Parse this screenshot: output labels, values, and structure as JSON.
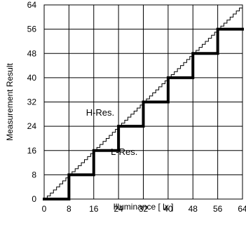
{
  "chart_data": {
    "type": "line",
    "xlabel": "Illuminance [ lx ]",
    "ylabel": "Measurement Result",
    "xlim": [
      0,
      64
    ],
    "ylim": [
      0,
      64
    ],
    "x_ticks": [
      0,
      8,
      16,
      24,
      32,
      40,
      48,
      56,
      64
    ],
    "y_ticks": [
      0,
      8,
      16,
      24,
      32,
      40,
      48,
      56,
      64
    ],
    "grid": true,
    "annotations": [
      {
        "text": "H-Res.",
        "x": 13.5,
        "y": 27.5
      },
      {
        "text": "L-Res.",
        "x": 21.5,
        "y": 14.5
      }
    ],
    "series": [
      {
        "name": "H-Res.",
        "color": "#000000",
        "step_size": 1,
        "points": [
          [
            0,
            0
          ],
          [
            1,
            0
          ],
          [
            1,
            1
          ],
          [
            2,
            1
          ],
          [
            2,
            2
          ],
          [
            3,
            2
          ],
          [
            3,
            3
          ],
          [
            4,
            3
          ],
          [
            4,
            4
          ],
          [
            5,
            4
          ],
          [
            5,
            5
          ],
          [
            6,
            5
          ],
          [
            6,
            6
          ],
          [
            7,
            6
          ],
          [
            7,
            7
          ],
          [
            8,
            7
          ],
          [
            8,
            8
          ],
          [
            9,
            8
          ],
          [
            9,
            9
          ],
          [
            10,
            9
          ],
          [
            10,
            10
          ],
          [
            11,
            10
          ],
          [
            11,
            11
          ],
          [
            12,
            11
          ],
          [
            12,
            12
          ],
          [
            13,
            12
          ],
          [
            13,
            13
          ],
          [
            14,
            13
          ],
          [
            14,
            14
          ],
          [
            15,
            14
          ],
          [
            15,
            15
          ],
          [
            16,
            15
          ],
          [
            16,
            16
          ],
          [
            17,
            16
          ],
          [
            17,
            17
          ],
          [
            18,
            17
          ],
          [
            18,
            18
          ],
          [
            19,
            18
          ],
          [
            19,
            19
          ],
          [
            20,
            19
          ],
          [
            20,
            20
          ],
          [
            21,
            20
          ],
          [
            21,
            21
          ],
          [
            22,
            21
          ],
          [
            22,
            22
          ],
          [
            23,
            22
          ],
          [
            23,
            23
          ],
          [
            24,
            23
          ],
          [
            24,
            24
          ],
          [
            25,
            24
          ],
          [
            25,
            25
          ],
          [
            26,
            25
          ],
          [
            26,
            26
          ],
          [
            27,
            26
          ],
          [
            27,
            27
          ],
          [
            28,
            27
          ],
          [
            28,
            28
          ],
          [
            29,
            28
          ],
          [
            29,
            29
          ],
          [
            30,
            29
          ],
          [
            30,
            30
          ],
          [
            31,
            30
          ],
          [
            31,
            31
          ],
          [
            32,
            31
          ],
          [
            32,
            32
          ],
          [
            33,
            32
          ],
          [
            33,
            33
          ],
          [
            34,
            33
          ],
          [
            34,
            34
          ],
          [
            35,
            34
          ],
          [
            35,
            35
          ],
          [
            36,
            35
          ],
          [
            36,
            36
          ],
          [
            37,
            36
          ],
          [
            37,
            37
          ],
          [
            38,
            37
          ],
          [
            38,
            38
          ],
          [
            39,
            38
          ],
          [
            39,
            39
          ],
          [
            40,
            39
          ],
          [
            40,
            40
          ],
          [
            41,
            40
          ],
          [
            41,
            41
          ],
          [
            42,
            41
          ],
          [
            42,
            42
          ],
          [
            43,
            42
          ],
          [
            43,
            43
          ],
          [
            44,
            43
          ],
          [
            44,
            44
          ],
          [
            45,
            44
          ],
          [
            45,
            45
          ],
          [
            46,
            45
          ],
          [
            46,
            46
          ],
          [
            47,
            46
          ],
          [
            47,
            47
          ],
          [
            48,
            47
          ],
          [
            48,
            48
          ],
          [
            49,
            48
          ],
          [
            49,
            49
          ],
          [
            50,
            49
          ],
          [
            50,
            50
          ],
          [
            51,
            50
          ],
          [
            51,
            51
          ],
          [
            52,
            51
          ],
          [
            52,
            52
          ],
          [
            53,
            52
          ],
          [
            53,
            53
          ],
          [
            54,
            53
          ],
          [
            54,
            54
          ],
          [
            55,
            54
          ],
          [
            55,
            55
          ],
          [
            56,
            55
          ],
          [
            56,
            56
          ],
          [
            57,
            56
          ],
          [
            57,
            57
          ],
          [
            58,
            57
          ],
          [
            58,
            58
          ],
          [
            59,
            58
          ],
          [
            59,
            59
          ],
          [
            60,
            59
          ],
          [
            60,
            60
          ],
          [
            61,
            60
          ],
          [
            61,
            61
          ],
          [
            62,
            61
          ],
          [
            62,
            62
          ],
          [
            63,
            62
          ],
          [
            63,
            63
          ],
          [
            64,
            63
          ]
        ]
      },
      {
        "name": "L-Res.",
        "color": "#000000",
        "step_size": 8,
        "points": [
          [
            0,
            0
          ],
          [
            8,
            0
          ],
          [
            8,
            8
          ],
          [
            16,
            8
          ],
          [
            16,
            16
          ],
          [
            24,
            16
          ],
          [
            24,
            24
          ],
          [
            32,
            24
          ],
          [
            32,
            32
          ],
          [
            40,
            32
          ],
          [
            40,
            40
          ],
          [
            48,
            40
          ],
          [
            48,
            48
          ],
          [
            56,
            48
          ],
          [
            56,
            56
          ],
          [
            64,
            56
          ]
        ]
      }
    ]
  }
}
